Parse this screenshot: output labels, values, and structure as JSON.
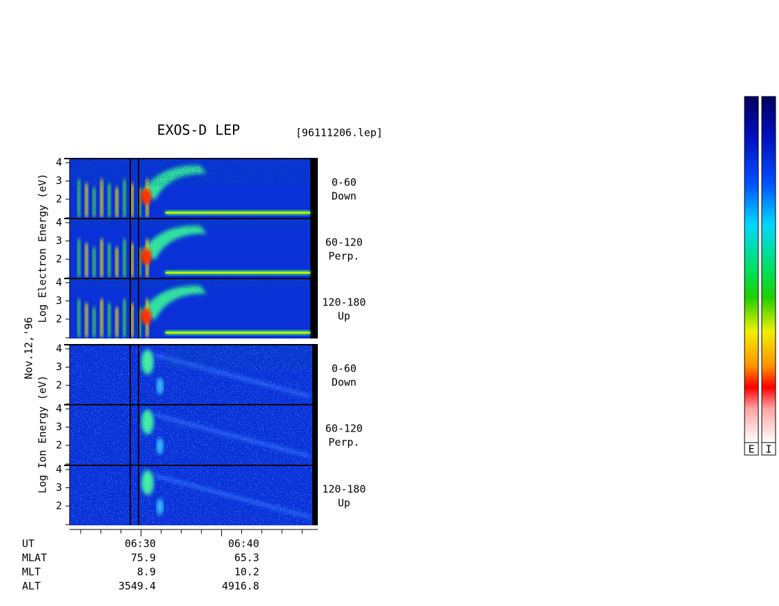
{
  "header": {
    "title": "EXOS-D LEP",
    "file": "[96111206.lep]"
  },
  "date": "Nov.12,'96",
  "electron": {
    "axis_label": "Log Electron Energy (eV)",
    "panels": [
      {
        "yticks": [
          "4",
          "3",
          "2"
        ],
        "pitch": "0-60",
        "direction": "Down"
      },
      {
        "yticks": [
          "4",
          "3",
          "2"
        ],
        "pitch": "60-120",
        "direction": "Perp."
      },
      {
        "yticks": [
          "4",
          "3",
          "2"
        ],
        "pitch": "120-180",
        "direction": "Up"
      }
    ]
  },
  "ion": {
    "axis_label": "Log Ion Energy (eV)",
    "panels": [
      {
        "yticks": [
          "4",
          "3",
          "2"
        ],
        "pitch": "0-60",
        "direction": "Down"
      },
      {
        "yticks": [
          "4",
          "3",
          "2"
        ],
        "pitch": "60-120",
        "direction": "Perp."
      },
      {
        "yticks": [
          "4",
          "3",
          "2"
        ],
        "pitch": "120-180",
        "direction": "Up"
      }
    ]
  },
  "orbit": {
    "rows": [
      [
        "UT",
        "06:30",
        "06:40"
      ],
      [
        "MLAT",
        "75.9",
        "65.3"
      ],
      [
        "MLT",
        "8.9",
        "10.2"
      ],
      [
        "ALT",
        "3549.4",
        "4916.8"
      ]
    ]
  },
  "colorbars": [
    "E",
    "I"
  ]
}
